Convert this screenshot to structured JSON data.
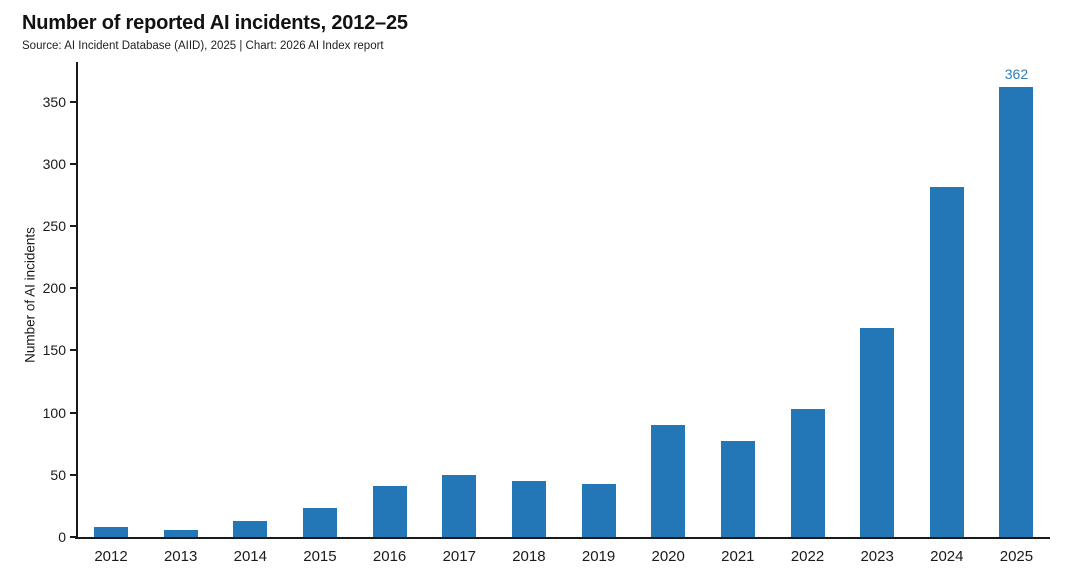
{
  "header": {
    "title": "Number of reported AI incidents, 2012–25",
    "subtitle": "Source: AI Incident Database (AIID), 2025 | Chart: 2026 AI Index report"
  },
  "chart_data": {
    "type": "bar",
    "title": "Number of reported AI incidents, 2012–25",
    "subtitle": "Source: AI Incident Database (AIID), 2025 | Chart: 2026 AI Index report",
    "categories": [
      "2012",
      "2013",
      "2014",
      "2015",
      "2016",
      "2017",
      "2018",
      "2019",
      "2020",
      "2021",
      "2022",
      "2023",
      "2024",
      "2025"
    ],
    "values": [
      8,
      6,
      13,
      23,
      41,
      50,
      45,
      43,
      90,
      77,
      103,
      168,
      281,
      362
    ],
    "xlabel": "",
    "ylabel": "Number of AI incidents",
    "ylim": [
      0,
      383
    ],
    "yticks": [
      0,
      50,
      100,
      150,
      200,
      250,
      300,
      350
    ],
    "grid": false,
    "legend": false,
    "annotations": [
      {
        "category": "2025",
        "label": "362"
      }
    ],
    "colors": {
      "bar": "#2377b6",
      "annotation_text": "#2e7ebd",
      "axis": "#1a1a1a",
      "background": "#ffffff"
    }
  }
}
